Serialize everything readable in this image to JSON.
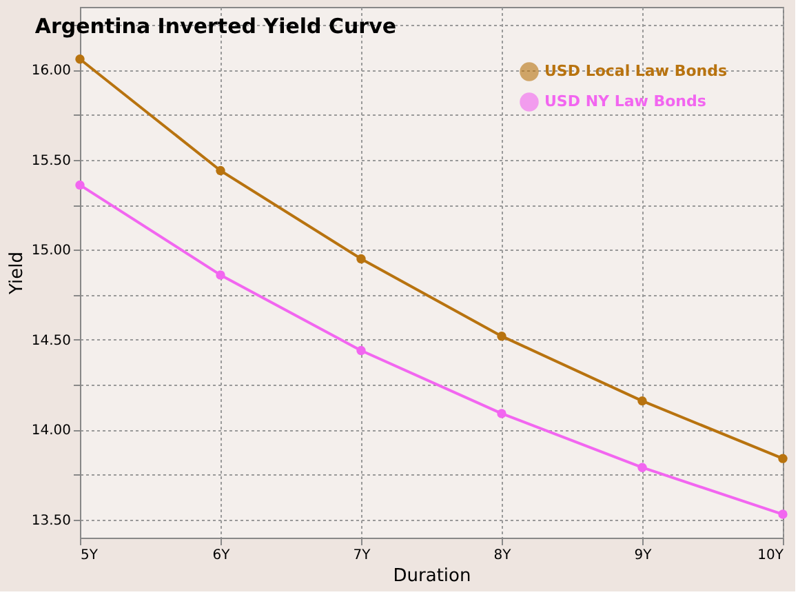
{
  "chart_data": {
    "type": "line",
    "title": "Argentina Inverted Yield Curve",
    "xlabel": "Duration",
    "ylabel": "Yield",
    "categories": [
      "5Y",
      "6Y",
      "7Y",
      "8Y",
      "9Y",
      "10Y"
    ],
    "series": [
      {
        "name": "USD Local Law Bonds",
        "color": "#b8730f",
        "values": [
          16.06,
          15.44,
          14.95,
          14.52,
          14.16,
          13.84
        ]
      },
      {
        "name": "USD NY Law Bonds",
        "color": "#f266f0",
        "values": [
          15.36,
          14.86,
          14.44,
          14.09,
          13.79,
          13.53
        ]
      }
    ],
    "ylim": [
      13.4,
      16.35
    ],
    "yticks": [
      {
        "value": 13.5,
        "label": "13.50"
      },
      {
        "value": 13.75,
        "label": null
      },
      {
        "value": 14.0,
        "label": "14.00"
      },
      {
        "value": 14.25,
        "label": null
      },
      {
        "value": 14.5,
        "label": "14.50"
      },
      {
        "value": 14.75,
        "label": null
      },
      {
        "value": 15.0,
        "label": "15.00"
      },
      {
        "value": 15.25,
        "label": null
      },
      {
        "value": 15.5,
        "label": "15.50"
      },
      {
        "value": 15.75,
        "label": null
      },
      {
        "value": 16.0,
        "label": "16.00"
      },
      {
        "value": 16.25,
        "label": null
      }
    ],
    "grid": true,
    "legend": "top right",
    "marker": "circle",
    "line_style": "solid"
  }
}
